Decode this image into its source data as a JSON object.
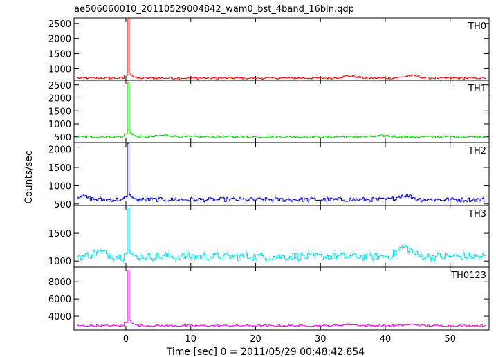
{
  "title": "ae506060010_20110529004842_wam0_bst_4band_16bin.qdp",
  "xlabel": "Time [sec] 0 = 2011/05/29 00:48:42.854",
  "ylabel": "Counts/sec",
  "chart_data": [
    {
      "type": "line",
      "name": "TH0",
      "color": "#ff0000",
      "ylim": [
        620,
        2680
      ],
      "yticks": [
        1000,
        1500,
        2000,
        2500
      ],
      "baseline": 690,
      "noise": 30,
      "peak": 2640,
      "after": 1000,
      "bumps": [
        [
          34.5,
          70
        ],
        [
          44,
          80
        ]
      ]
    },
    {
      "type": "line",
      "name": "TH1",
      "color": "#00dd00",
      "ylim": [
        280,
        2680
      ],
      "yticks": [
        500,
        1000,
        1500,
        2000,
        2500
      ],
      "baseline": 500,
      "noise": 40,
      "peak": 2580,
      "after": 900,
      "bumps": [
        [
          6,
          60
        ],
        [
          40,
          40
        ]
      ]
    },
    {
      "type": "line",
      "name": "TH2",
      "color": "#0000cc",
      "ylim": [
        460,
        2180
      ],
      "yticks": [
        500,
        1000,
        1500,
        2000
      ],
      "baseline": 620,
      "noise": 55,
      "peak": 2150,
      "after": 870,
      "bumps": [
        [
          -7,
          100
        ],
        [
          43,
          120
        ]
      ]
    },
    {
      "type": "line",
      "name": "TH3",
      "color": "#00e5ee",
      "ylim": [
        890,
        2000
      ],
      "yticks": [
        1000,
        1500
      ],
      "baseline": 1080,
      "noise": 70,
      "peak": 1960,
      "after": 1250,
      "bumps": [
        [
          -4,
          80
        ],
        [
          43,
          170
        ]
      ]
    },
    {
      "type": "line",
      "name": "TH0123",
      "color": "#ee00ee",
      "ylim": [
        2400,
        9700
      ],
      "yticks": [
        4000,
        6000,
        8000
      ],
      "baseline": 2900,
      "noise": 90,
      "peak": 9300,
      "after": 4100,
      "bumps": [
        [
          34.5,
          150
        ],
        [
          44,
          150
        ]
      ]
    }
  ],
  "xlim": [
    -8,
    56
  ],
  "xticks": [
    0,
    10,
    20,
    30,
    40,
    50
  ],
  "peak_time": 0.3,
  "bin_sec": 0.25
}
